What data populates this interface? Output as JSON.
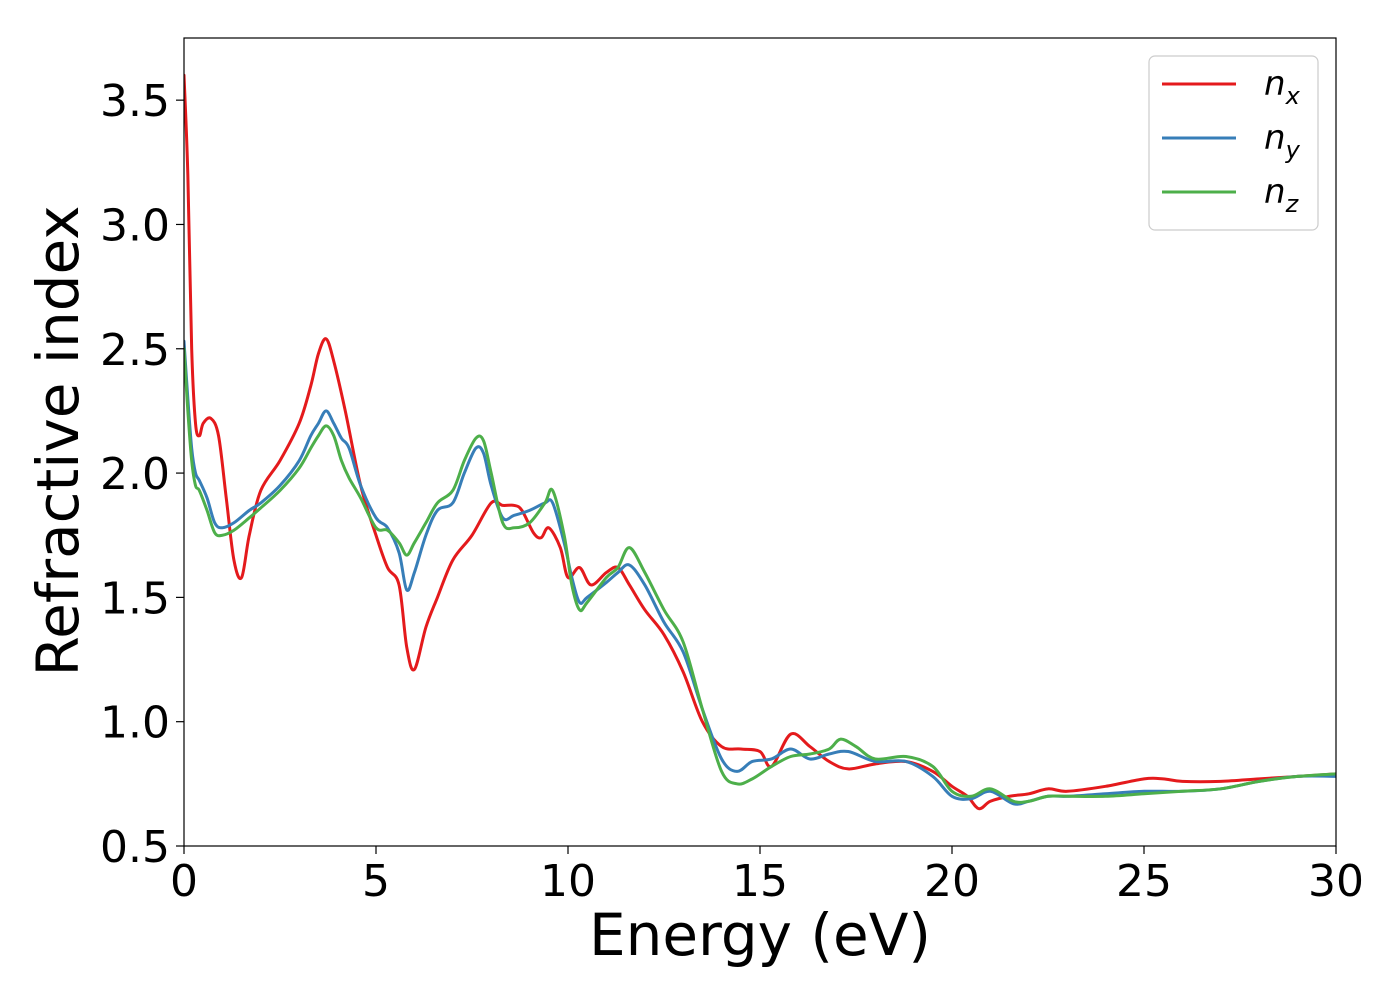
{
  "chart_data": {
    "type": "line",
    "xlabel": "Energy (eV)",
    "ylabel": "Refractive index",
    "xlim": [
      0,
      30
    ],
    "ylim": [
      0.5,
      3.75
    ],
    "xticks": [
      "0",
      "5",
      "10",
      "15",
      "20",
      "25",
      "30"
    ],
    "yticks": [
      "0.5",
      "1.0",
      "1.5",
      "2.0",
      "2.5",
      "3.0",
      "3.5"
    ],
    "grid": false,
    "legend_position": "top-right",
    "series": [
      {
        "name": "n_x",
        "label_base": "n",
        "label_sub": "x",
        "color": "#e41a1c",
        "x": [
          0,
          0.1,
          0.2,
          0.3,
          0.4,
          0.5,
          0.7,
          0.9,
          1.1,
          1.3,
          1.5,
          1.7,
          2.0,
          2.5,
          3.0,
          3.3,
          3.5,
          3.7,
          3.9,
          4.2,
          4.6,
          5.0,
          5.3,
          5.6,
          5.8,
          6.0,
          6.3,
          6.6,
          7.0,
          7.5,
          8.0,
          8.3,
          8.6,
          8.8,
          9.1,
          9.3,
          9.5,
          9.8,
          10.0,
          10.3,
          10.6,
          11.0,
          11.3,
          11.6,
          12.0,
          12.5,
          13.0,
          13.5,
          14.0,
          14.5,
          15.0,
          15.3,
          15.8,
          16.3,
          16.8,
          17.3,
          18.0,
          18.8,
          19.5,
          20.0,
          20.4,
          20.7,
          21.0,
          21.5,
          22.0,
          22.5,
          23.0,
          24.0,
          25.0,
          25.5,
          26.0,
          27.0,
          28.0,
          29.0,
          30.0
        ],
        "y": [
          3.6,
          3.2,
          2.5,
          2.2,
          2.15,
          2.2,
          2.22,
          2.15,
          1.9,
          1.65,
          1.58,
          1.75,
          1.93,
          2.05,
          2.2,
          2.35,
          2.48,
          2.54,
          2.45,
          2.25,
          1.95,
          1.75,
          1.62,
          1.55,
          1.3,
          1.21,
          1.38,
          1.5,
          1.65,
          1.75,
          1.88,
          1.87,
          1.87,
          1.85,
          1.76,
          1.74,
          1.78,
          1.7,
          1.58,
          1.62,
          1.55,
          1.6,
          1.62,
          1.55,
          1.45,
          1.35,
          1.2,
          1.0,
          0.9,
          0.89,
          0.88,
          0.82,
          0.95,
          0.9,
          0.84,
          0.81,
          0.83,
          0.84,
          0.8,
          0.74,
          0.7,
          0.65,
          0.68,
          0.7,
          0.71,
          0.73,
          0.72,
          0.74,
          0.77,
          0.77,
          0.76,
          0.76,
          0.77,
          0.78,
          0.79
        ]
      },
      {
        "name": "n_y",
        "label_base": "n",
        "label_sub": "y",
        "color": "#377eb8",
        "x": [
          0,
          0.1,
          0.2,
          0.3,
          0.4,
          0.6,
          0.8,
          1.0,
          1.3,
          1.7,
          2.0,
          2.5,
          3.0,
          3.3,
          3.5,
          3.7,
          3.9,
          4.1,
          4.3,
          4.6,
          5.0,
          5.3,
          5.6,
          5.8,
          6.0,
          6.3,
          6.6,
          7.0,
          7.3,
          7.6,
          7.8,
          8.0,
          8.3,
          8.6,
          9.0,
          9.4,
          9.6,
          9.9,
          10.1,
          10.3,
          10.5,
          11.0,
          11.3,
          11.6,
          12.0,
          12.5,
          13.0,
          13.5,
          14.0,
          14.4,
          14.8,
          15.3,
          15.8,
          16.3,
          16.8,
          17.3,
          18.0,
          18.8,
          19.5,
          20.0,
          20.5,
          21.0,
          21.6,
          22.0,
          22.5,
          23.0,
          24.0,
          25.0,
          26.0,
          27.0,
          28.0,
          29.0,
          30.0
        ],
        "y": [
          2.53,
          2.3,
          2.1,
          2.0,
          1.97,
          1.9,
          1.8,
          1.78,
          1.8,
          1.85,
          1.88,
          1.95,
          2.05,
          2.15,
          2.2,
          2.25,
          2.2,
          2.14,
          2.1,
          1.95,
          1.82,
          1.78,
          1.68,
          1.53,
          1.6,
          1.75,
          1.85,
          1.88,
          2.0,
          2.1,
          2.08,
          1.95,
          1.82,
          1.83,
          1.85,
          1.88,
          1.88,
          1.72,
          1.58,
          1.48,
          1.5,
          1.56,
          1.6,
          1.63,
          1.55,
          1.4,
          1.28,
          1.05,
          0.85,
          0.8,
          0.84,
          0.85,
          0.89,
          0.85,
          0.87,
          0.88,
          0.84,
          0.84,
          0.78,
          0.7,
          0.69,
          0.72,
          0.67,
          0.68,
          0.7,
          0.7,
          0.71,
          0.72,
          0.72,
          0.73,
          0.76,
          0.78,
          0.78
        ]
      },
      {
        "name": "n_z",
        "label_base": "n",
        "label_sub": "z",
        "color": "#4daf4a",
        "x": [
          0,
          0.1,
          0.2,
          0.3,
          0.4,
          0.6,
          0.8,
          1.0,
          1.3,
          1.7,
          2.0,
          2.5,
          3.0,
          3.3,
          3.5,
          3.7,
          3.9,
          4.1,
          4.3,
          4.6,
          5.0,
          5.3,
          5.6,
          5.8,
          6.0,
          6.3,
          6.6,
          7.0,
          7.3,
          7.6,
          7.8,
          8.0,
          8.3,
          8.6,
          9.0,
          9.4,
          9.6,
          9.9,
          10.1,
          10.3,
          10.5,
          11.0,
          11.3,
          11.6,
          12.0,
          12.5,
          13.0,
          13.5,
          14.0,
          14.4,
          14.8,
          15.3,
          15.8,
          16.3,
          16.8,
          17.1,
          17.5,
          18.0,
          18.8,
          19.5,
          20.0,
          20.5,
          21.0,
          21.6,
          22.0,
          22.5,
          23.0,
          24.0,
          25.0,
          26.0,
          27.0,
          28.0,
          29.0,
          30.0
        ],
        "y": [
          2.5,
          2.25,
          2.05,
          1.95,
          1.93,
          1.85,
          1.76,
          1.75,
          1.77,
          1.82,
          1.86,
          1.93,
          2.02,
          2.1,
          2.15,
          2.19,
          2.15,
          2.05,
          1.98,
          1.9,
          1.78,
          1.77,
          1.72,
          1.67,
          1.72,
          1.8,
          1.88,
          1.93,
          2.05,
          2.14,
          2.13,
          2.0,
          1.8,
          1.78,
          1.8,
          1.88,
          1.93,
          1.75,
          1.55,
          1.45,
          1.48,
          1.58,
          1.62,
          1.7,
          1.6,
          1.45,
          1.32,
          1.05,
          0.8,
          0.75,
          0.77,
          0.82,
          0.86,
          0.87,
          0.89,
          0.93,
          0.9,
          0.85,
          0.86,
          0.82,
          0.72,
          0.7,
          0.73,
          0.68,
          0.68,
          0.7,
          0.7,
          0.7,
          0.71,
          0.72,
          0.73,
          0.76,
          0.78,
          0.79
        ]
      }
    ]
  }
}
